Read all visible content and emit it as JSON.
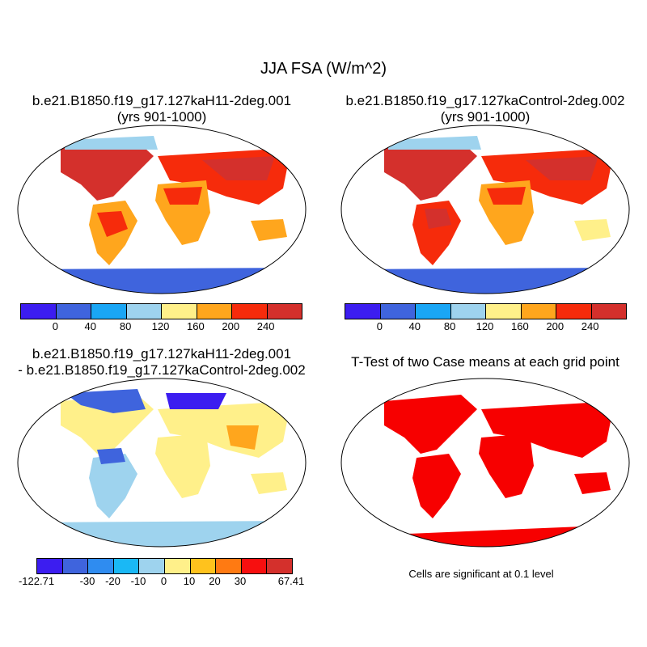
{
  "main_title": "JJA FSA (W/m^2)",
  "panels": {
    "top_left": {
      "title": "b.e21.B1850.f19_g17.127kaH11-2deg.001",
      "subtitle": "(yrs 901-1000)"
    },
    "top_right": {
      "title": "b.e21.B1850.f19_g17.127kaControl-2deg.002",
      "subtitle": "(yrs 901-1000)"
    },
    "bottom_left": {
      "title": "b.e21.B1850.f19_g17.127kaH11-2deg.001",
      "subtitle": "- b.e21.B1850.f19_g17.127kaControl-2deg.002"
    },
    "bottom_right": {
      "title": "T-Test of two Case means at each grid point"
    }
  },
  "colorbar_abs": {
    "colors": [
      "#3c1df0",
      "#3f64dd",
      "#1aa6f5",
      "#9ed3ee",
      "#fff08a",
      "#ffa61d",
      "#f62b0b",
      "#d4302c"
    ],
    "labels": [
      "0",
      "40",
      "80",
      "120",
      "160",
      "200",
      "240"
    ]
  },
  "colorbar_diff": {
    "colors": [
      "#3c1df0",
      "#3f64dd",
      "#2f8cf0",
      "#1ab8f5",
      "#9ed3ee",
      "#fff08a",
      "#ffc21d",
      "#ff7a12",
      "#f70f0f",
      "#d4302c"
    ],
    "labels": [
      "-122.71",
      "-30",
      "-20",
      "-10",
      "0",
      "10",
      "20",
      "30",
      "67.41"
    ]
  },
  "significance_note": "Cells are significant at 0.1 level",
  "palette": {
    "ocean": "#ffffff",
    "outline": "#000000",
    "ttest": "#f70000"
  }
}
